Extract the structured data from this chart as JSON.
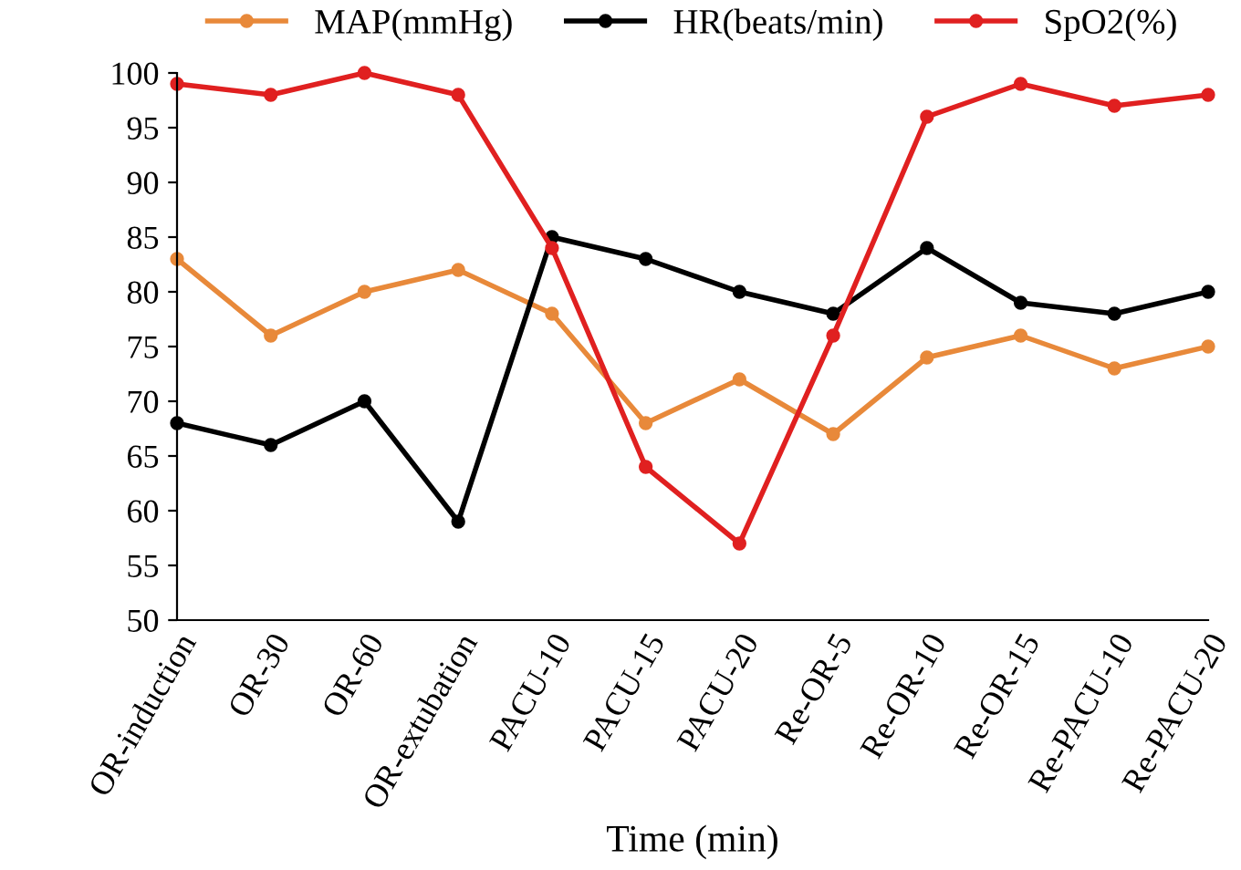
{
  "chart_data": {
    "type": "line",
    "xlabel": "Time (min)",
    "categories": [
      "OR-induction",
      "OR-30",
      "OR-60",
      "OR-extubation",
      "PACU-10",
      "PACU-15",
      "PACU-20",
      "Re-OR-5",
      "Re-OR-10",
      "Re-OR-15",
      "Re-PACU-10",
      "Re-PACU-20"
    ],
    "series": [
      {
        "name": "MAP(mmHg)",
        "color": "#e8893a",
        "values": [
          83,
          76,
          80,
          82,
          78,
          68,
          72,
          67,
          74,
          76,
          73,
          75
        ]
      },
      {
        "name": "HR(beats/min)",
        "color": "#000000",
        "values": [
          68,
          66,
          70,
          59,
          85,
          83,
          80,
          78,
          84,
          79,
          78,
          80
        ]
      },
      {
        "name": "SpO2(%)",
        "color": "#e02020",
        "values": [
          99,
          98,
          100,
          98,
          84,
          64,
          57,
          76,
          96,
          99,
          97,
          98
        ]
      }
    ],
    "ylim": [
      50,
      100
    ],
    "yticks": [
      50,
      55,
      60,
      65,
      70,
      75,
      80,
      85,
      90,
      95,
      100
    ],
    "grid": false,
    "legend": "top",
    "marker": "circle",
    "line_style": "solid"
  }
}
